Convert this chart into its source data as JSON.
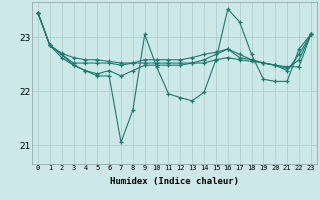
{
  "xlabel": "Humidex (Indice chaleur)",
  "background_color": "#cce8e8",
  "grid_color": "#aacccc",
  "line_color": "#1a7a6e",
  "x_min": -0.5,
  "x_max": 23.5,
  "y_min": 20.65,
  "y_max": 23.65,
  "yticks": [
    21,
    22,
    23
  ],
  "xticks": [
    0,
    1,
    2,
    3,
    4,
    5,
    6,
    7,
    8,
    9,
    10,
    11,
    12,
    13,
    14,
    15,
    16,
    17,
    18,
    19,
    20,
    21,
    22,
    23
  ],
  "series": [
    [
      23.45,
      22.85,
      22.7,
      22.62,
      22.58,
      22.58,
      22.55,
      22.52,
      22.52,
      22.52,
      22.52,
      22.52,
      22.52,
      22.52,
      22.52,
      22.58,
      22.62,
      22.58,
      22.55,
      22.52,
      22.48,
      22.45,
      22.45,
      23.05
    ],
    [
      23.45,
      22.85,
      22.62,
      22.48,
      22.38,
      22.28,
      22.28,
      21.05,
      21.65,
      23.05,
      22.45,
      21.95,
      21.88,
      21.82,
      21.98,
      22.58,
      23.52,
      23.28,
      22.68,
      22.22,
      22.18,
      22.18,
      22.78,
      23.05
    ],
    [
      23.45,
      22.85,
      22.68,
      22.48,
      22.38,
      22.32,
      22.38,
      22.28,
      22.38,
      22.48,
      22.48,
      22.48,
      22.48,
      22.52,
      22.58,
      22.68,
      22.78,
      22.62,
      22.58,
      22.52,
      22.48,
      22.38,
      22.68,
      23.05
    ],
    [
      23.45,
      22.85,
      22.68,
      22.52,
      22.52,
      22.52,
      22.52,
      22.48,
      22.52,
      22.58,
      22.58,
      22.58,
      22.58,
      22.62,
      22.68,
      22.72,
      22.78,
      22.68,
      22.58,
      22.52,
      22.48,
      22.42,
      22.58,
      23.05
    ]
  ]
}
